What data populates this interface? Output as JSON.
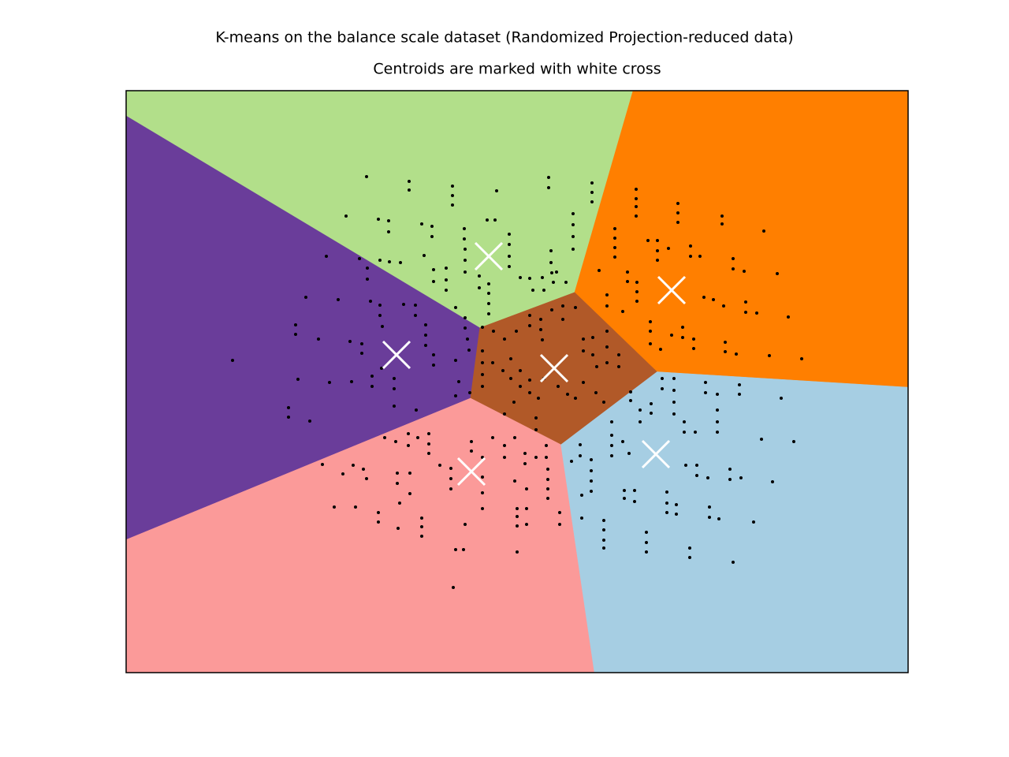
{
  "chart_data": {
    "type": "scatter",
    "title": "K-means on the balance scale dataset (Randomized Projection-reduced data)",
    "subtitle": "Centroids are marked with white cross",
    "xlim": [
      160,
      1152
    ],
    "ylim": [
      853,
      115
    ],
    "point_color": "#000000",
    "centroid_color": "#ffffff",
    "centroids": {
      "x": [
        620,
        852,
        503,
        703,
        598,
        832
      ],
      "y": [
        325,
        368,
        450,
        467,
        598,
        576
      ],
      "colors": [
        "#b2df8a",
        "#ff7f00",
        "#6a3d9a",
        "#b15928",
        "#fb9a99",
        "#a6cee3"
      ]
    },
    "points": {
      "x": [
        465,
        519,
        519,
        574,
        574,
        574,
        630,
        696,
        696,
        751,
        751,
        751,
        439,
        480,
        493,
        493,
        535,
        548,
        548,
        589,
        589,
        618,
        628,
        646,
        646,
        727,
        727,
        727,
        727,
        699,
        699,
        700,
        702,
        414,
        456,
        482,
        494,
        508,
        538,
        550,
        550,
        566,
        566,
        566,
        590,
        590,
        590,
        608,
        608,
        620,
        620,
        620,
        620,
        646,
        646,
        660,
        672,
        688,
        676,
        690,
        706,
        718,
        295,
        388,
        429,
        466,
        466,
        470,
        482,
        482,
        485,
        375,
        375,
        404,
        444,
        459,
        459,
        512,
        527,
        527,
        540,
        540,
        540,
        550,
        550,
        578,
        590,
        590,
        593,
        595,
        578,
        582,
        500,
        500,
        500,
        484,
        472,
        472,
        446,
        418,
        378,
        366,
        366,
        393,
        528,
        578,
        596,
        612,
        626,
        640,
        655,
        672,
        672,
        686,
        686,
        688,
        700,
        714,
        714,
        730,
        740,
        740,
        752,
        752,
        757,
        770,
        770,
        770,
        785,
        785,
        612,
        612,
        612,
        612,
        625,
        638,
        648,
        648,
        660,
        660,
        672,
        672,
        683,
        690,
        708,
        720,
        730,
        740,
        756,
        766,
        680,
        680,
        652,
        640,
        807,
        807,
        807,
        807,
        860,
        860,
        860,
        916,
        916,
        969,
        780,
        780,
        780,
        780,
        822,
        834,
        834,
        834,
        848,
        876,
        876,
        888,
        930,
        930,
        944,
        986,
        760,
        770,
        770,
        796,
        796,
        808,
        808,
        808,
        893,
        905,
        918,
        946,
        946,
        960,
        1000,
        866,
        866,
        880,
        880,
        825,
        825,
        825,
        838,
        852,
        920,
        920,
        934,
        976,
        1017,
        790,
        800,
        800,
        812,
        812,
        826,
        826,
        840,
        840,
        855,
        855,
        855,
        855,
        868,
        868,
        882,
        895,
        895,
        910,
        910,
        910,
        910,
        938,
        938,
        966,
        991,
        1007,
        776,
        776,
        776,
        776,
        790,
        798,
        736,
        736,
        725,
        750,
        750,
        750,
        750,
        738,
        738,
        766,
        766,
        766,
        766,
        792,
        792,
        805,
        805,
        820,
        820,
        820,
        846,
        846,
        846,
        858,
        858,
        875,
        875,
        900,
        900,
        912,
        930,
        956,
        870,
        884,
        884,
        898,
        926,
        926,
        940,
        980,
        409,
        435,
        448,
        461,
        465,
        488,
        502,
        518,
        518,
        530,
        544,
        544,
        544,
        504,
        504,
        520,
        520,
        507,
        480,
        480,
        424,
        451,
        535,
        535,
        535,
        558,
        572,
        572,
        572,
        590,
        598,
        598,
        612,
        612,
        612,
        612,
        625,
        640,
        640,
        653,
        653,
        666,
        666,
        668,
        668,
        656,
        656,
        656,
        668,
        680,
        693,
        693,
        695,
        695,
        695,
        695,
        710,
        710,
        575,
        578,
        588,
        656,
        505
      ],
      "y": [
        224,
        230,
        241,
        236,
        248,
        260,
        242,
        225,
        238,
        232,
        244,
        256,
        274,
        278,
        280,
        294,
        284,
        287,
        300,
        290,
        303,
        279,
        279,
        297,
        310,
        271,
        285,
        300,
        316,
        318,
        333,
        346,
        358,
        325,
        328,
        330,
        332,
        333,
        324,
        342,
        357,
        340,
        355,
        368,
        316,
        330,
        345,
        350,
        365,
        360,
        372,
        385,
        398,
        325,
        338,
        352,
        353,
        352,
        368,
        368,
        345,
        358,
        457,
        377,
        380,
        340,
        354,
        382,
        387,
        400,
        414,
        412,
        424,
        430,
        433,
        436,
        448,
        386,
        387,
        400,
        412,
        425,
        438,
        450,
        463,
        390,
        403,
        416,
        430,
        444,
        457,
        484,
        480,
        493,
        515,
        467,
        477,
        490,
        484,
        485,
        481,
        517,
        529,
        534,
        520,
        502,
        498,
        415,
        420,
        430,
        420,
        400,
        413,
        405,
        418,
        431,
        393,
        388,
        405,
        390,
        430,
        445,
        428,
        450,
        465,
        420,
        440,
        460,
        450,
        465,
        445,
        460,
        475,
        490,
        460,
        470,
        455,
        480,
        470,
        490,
        482,
        498,
        505,
        480,
        490,
        500,
        505,
        485,
        498,
        510,
        530,
        545,
        510,
        525,
        240,
        252,
        262,
        274,
        258,
        270,
        282,
        274,
        284,
        293,
        290,
        302,
        314,
        326,
        305,
        305,
        318,
        330,
        315,
        312,
        325,
        325,
        328,
        341,
        344,
        347,
        343,
        374,
        388,
        345,
        357,
        358,
        370,
        382,
        377,
        380,
        388,
        383,
        396,
        397,
        402,
        415,
        428,
        430,
        442,
        408,
        420,
        436,
        443,
        425,
        434,
        446,
        449,
        451,
        455,
        395,
        497,
        508,
        520,
        535,
        512,
        524,
        480,
        493,
        480,
        495,
        510,
        525,
        535,
        548,
        548,
        485,
        498,
        500,
        520,
        535,
        548,
        488,
        500,
        557,
        505,
        560,
        535,
        552,
        565,
        578,
        560,
        575,
        564,
        578,
        585,
        583,
        597,
        610,
        623,
        628,
        657,
        660,
        672,
        685,
        695,
        622,
        632,
        622,
        636,
        675,
        688,
        700,
        624,
        638,
        650,
        640,
        652,
        695,
        707,
        643,
        656,
        658,
        713,
        662,
        590,
        590,
        603,
        606,
        595,
        608,
        606,
        611,
        589,
        601,
        590,
        595,
        607,
        555,
        560,
        550,
        565,
        555,
        550,
        563,
        575,
        600,
        613,
        600,
        626,
        638,
        650,
        662,
        643,
        643,
        657,
        668,
        680,
        590,
        594,
        607,
        620,
        665,
        560,
        572,
        580,
        605,
        625,
        645,
        555,
        565,
        580,
        555,
        610,
        575,
        588,
        620,
        645,
        645,
        655,
        667,
        665,
        580,
        565,
        580,
        595,
        608,
        620,
        632,
        650,
        665,
        745,
        697,
        697,
        700,
        670
      ]
    }
  }
}
